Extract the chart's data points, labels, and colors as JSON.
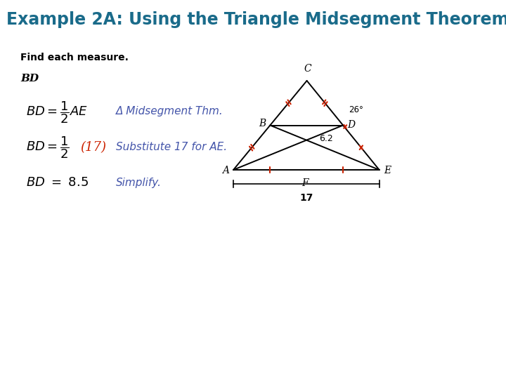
{
  "title": "Example 2A: Using the Triangle Midsegment Theorem",
  "title_color": "#1a6b8a",
  "title_fontsize": 17,
  "bg_color": "#ffffff",
  "find_text": "Find each measure.",
  "bd_label": "BD",
  "line1_right_blue": "Δ Midsegment Thm.",
  "line2_paren_red": "(17)",
  "line2_right_blue": "Substitute 17 for AE.",
  "line3_blue": "Simplify.",
  "label_color_black": "#000000",
  "label_color_blue": "#4455aa",
  "label_color_red": "#cc2200",
  "tick_color": "#cc2200",
  "tri_lw": 1.4
}
